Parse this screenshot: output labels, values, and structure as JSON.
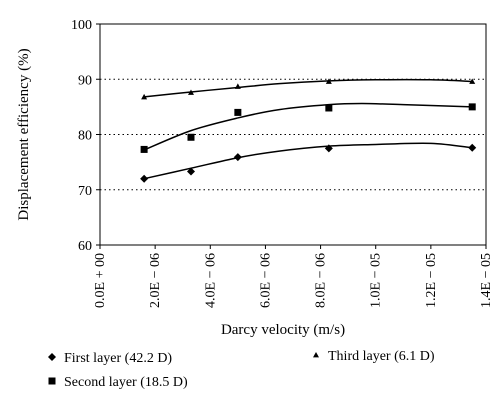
{
  "chart_data": {
    "type": "scatter",
    "xlabel": "Darcy velocity (m/s)",
    "ylabel": "Displacement efficiency (%)",
    "xlim": [
      0,
      1.4e-05
    ],
    "ylim": [
      60,
      100
    ],
    "x_ticks": [
      0,
      2e-06,
      4e-06,
      6e-06,
      8e-06,
      1e-05,
      1.2e-05,
      1.4e-05
    ],
    "x_tick_labels": [
      "0.0E + 00",
      "2.0E − 06",
      "4.0E − 06",
      "6.0E − 06",
      "8.0E − 06",
      "1.0E − 05",
      "1.2E − 05",
      "1.4E − 05"
    ],
    "y_ticks": [
      60,
      70,
      80,
      90,
      100
    ],
    "y_tick_labels": [
      "60",
      "70",
      "80",
      "90",
      "100"
    ],
    "grid": "horizontal dotted",
    "legend_position": "bottom",
    "series": [
      {
        "name": "First layer (42.2 D)",
        "marker": "diamond",
        "x": [
          1.6e-06,
          3.3e-06,
          5e-06,
          8.3e-06,
          1.35e-05
        ],
        "y": [
          72.0,
          73.3,
          75.9,
          77.5,
          77.6
        ],
        "trend": [
          [
            1.6e-06,
            72.0
          ],
          [
            3.3e-06,
            73.9
          ],
          [
            5e-06,
            75.8
          ],
          [
            6.5e-06,
            77.0
          ],
          [
            8.3e-06,
            77.9
          ],
          [
            1e-05,
            78.2
          ],
          [
            1.2e-05,
            78.4
          ],
          [
            1.35e-05,
            77.6
          ]
        ]
      },
      {
        "name": "Second layer (18.5 D)",
        "marker": "square",
        "x": [
          1.6e-06,
          3.3e-06,
          5e-06,
          8.3e-06,
          1.35e-05
        ],
        "y": [
          77.3,
          79.5,
          84.0,
          84.8,
          85.0
        ],
        "trend": [
          [
            1.6e-06,
            77.2
          ],
          [
            3.3e-06,
            80.7
          ],
          [
            5e-06,
            83.0
          ],
          [
            6.5e-06,
            84.5
          ],
          [
            8.3e-06,
            85.4
          ],
          [
            9.5e-06,
            85.6
          ],
          [
            1.1e-05,
            85.4
          ],
          [
            1.35e-05,
            85.0
          ]
        ]
      },
      {
        "name": "Third layer (6.1 D)",
        "marker": "triangle",
        "x": [
          1.6e-06,
          3.3e-06,
          5e-06,
          8.3e-06,
          1.35e-05
        ],
        "y": [
          86.8,
          87.6,
          88.7,
          89.6,
          89.6
        ],
        "trend": [
          [
            1.6e-06,
            86.8
          ],
          [
            3.3e-06,
            87.7
          ],
          [
            5e-06,
            88.5
          ],
          [
            6.5e-06,
            89.2
          ],
          [
            8.3e-06,
            89.7
          ],
          [
            1e-05,
            89.9
          ],
          [
            1.2e-05,
            89.9
          ],
          [
            1.35e-05,
            89.6
          ]
        ]
      }
    ]
  }
}
